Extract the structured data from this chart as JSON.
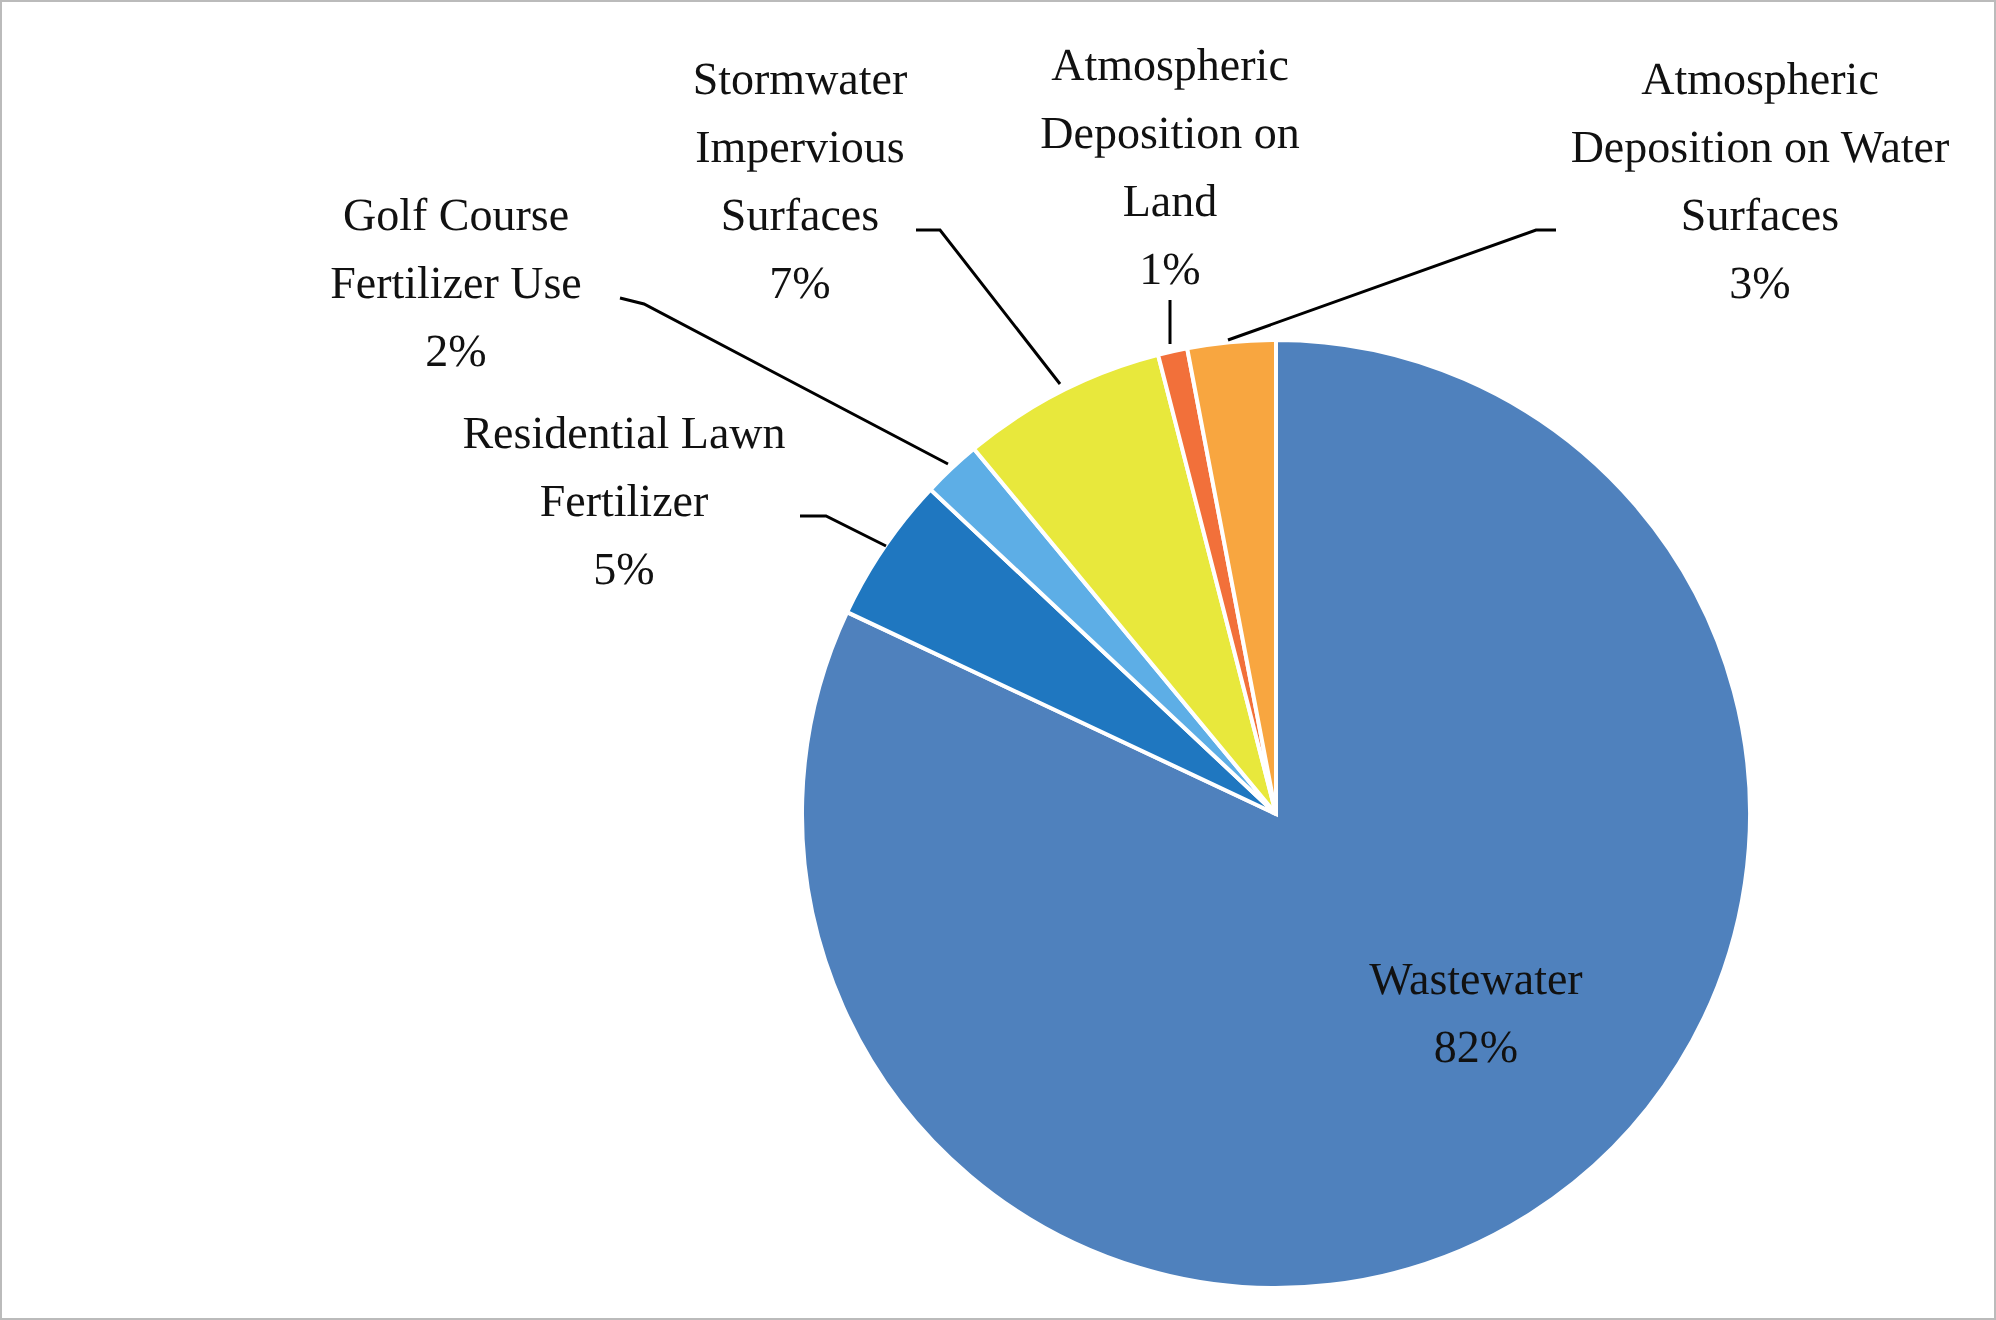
{
  "chart_data": {
    "type": "pie",
    "categories": [
      "Wastewater",
      "Residential Lawn Fertilizer",
      "Golf Course Fertilizer Use",
      "Stormwater Impervious Surfaces",
      "Atmospheric Deposition on Land",
      "Atmospheric Deposition on Water Surfaces"
    ],
    "values": [
      82,
      5,
      2,
      7,
      1,
      3
    ],
    "value_labels": [
      "82%",
      "5%",
      "2%",
      "7%",
      "1%",
      "3%"
    ],
    "colors": [
      "#4f81bd",
      "#1f77c0",
      "#5daee6",
      "#e8e83c",
      "#f2703a",
      "#f8a640"
    ]
  }
}
